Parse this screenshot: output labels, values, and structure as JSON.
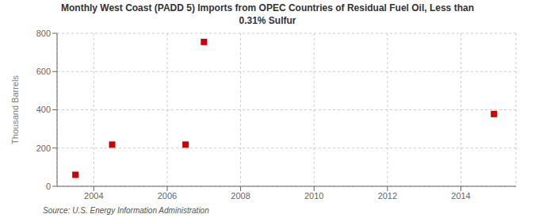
{
  "chart_data": {
    "type": "scatter",
    "title": "Monthly West Coast (PADD 5) Imports from OPEC Countries of Residual Fuel Oil, Less than\n0.31% Sulfur",
    "y_label": "Thousand Barrels",
    "annotations": [
      "Source: U.S. Energy Information Administration"
    ],
    "x": [
      2003.5,
      2004.5,
      2006.5,
      2007.0,
      2014.9
    ],
    "values": [
      60,
      218,
      218,
      755,
      378
    ],
    "color": "#cc0000",
    "marker": "square",
    "xlim": [
      2003,
      2015.5
    ],
    "ylim": [
      0,
      800
    ],
    "xticks": [
      2004,
      2006,
      2008,
      2010,
      2012,
      2014
    ],
    "yticks": [
      0,
      200,
      400,
      600,
      800
    ],
    "grid": true
  }
}
